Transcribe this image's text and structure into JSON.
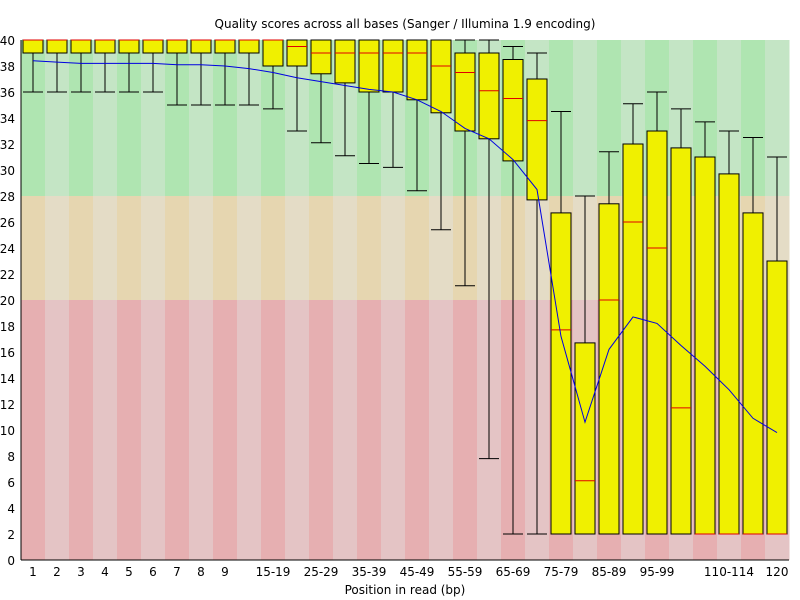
{
  "chart_data": {
    "type": "boxplot",
    "title": "Quality scores across all bases (Sanger / Illumina 1.9 encoding)",
    "xlabel": "Position in read (bp)",
    "ylabel": "",
    "ylim": [
      0,
      40
    ],
    "yticks": [
      0,
      2,
      4,
      6,
      8,
      10,
      12,
      14,
      16,
      18,
      20,
      22,
      24,
      26,
      28,
      30,
      32,
      34,
      36,
      38,
      40
    ],
    "categories": [
      "1",
      "2",
      "3",
      "4",
      "5",
      "6",
      "7",
      "8",
      "9",
      "",
      "15-19",
      "",
      "25-29",
      "",
      "35-39",
      "",
      "45-49",
      "",
      "55-59",
      "",
      "65-69",
      "",
      "75-79",
      "",
      "85-89",
      "",
      "95-99",
      "",
      "",
      "110-114",
      "",
      "120"
    ],
    "zones": [
      {
        "from": 28,
        "to": 40,
        "colors": [
          "#afe5b1",
          "#c4e5c5"
        ]
      },
      {
        "from": 20,
        "to": 28,
        "colors": [
          "#e6d6b0",
          "#e4dcc6"
        ]
      },
      {
        "from": 0,
        "to": 20,
        "colors": [
          "#e6afb1",
          "#e4c4c5"
        ]
      }
    ],
    "box_color": "#f0f000",
    "median_color": "#e00000",
    "mean_color": "#0000e0",
    "series": [
      {
        "stat": "whisker_high",
        "values": [
          40,
          40,
          40,
          40,
          40,
          40,
          40,
          40,
          40,
          40,
          40,
          40,
          40,
          40,
          40,
          40,
          40,
          40,
          40,
          40,
          39.5,
          39,
          34.5,
          28,
          31.4,
          35.1,
          36,
          34.7,
          33.7,
          33,
          32.5,
          31
        ]
      },
      {
        "stat": "q3",
        "values": [
          40,
          40,
          40,
          40,
          40,
          40,
          40,
          40,
          40,
          40,
          40,
          40,
          40,
          40,
          40,
          40,
          40,
          40,
          39,
          39,
          38.5,
          37,
          26.7,
          16.7,
          27.4,
          32,
          33,
          31.7,
          31,
          29.7,
          26.7,
          23
        ]
      },
      {
        "stat": "median",
        "values": [
          40,
          40,
          40,
          40,
          40,
          40,
          40,
          40,
          40,
          40,
          40,
          39.5,
          39,
          39,
          39,
          39,
          39,
          38,
          37.5,
          36.1,
          35.5,
          33.8,
          17.7,
          6.1,
          20,
          26,
          24,
          11.7,
          2,
          2,
          2,
          2
        ]
      },
      {
        "stat": "q1",
        "values": [
          39,
          39,
          39,
          39,
          39,
          39,
          39,
          39,
          39,
          39,
          38,
          38,
          37.4,
          36.7,
          36,
          36,
          35.4,
          34.4,
          33,
          32.4,
          30.7,
          27.7,
          2,
          2,
          2,
          2,
          2,
          2,
          2,
          2,
          2,
          2
        ]
      },
      {
        "stat": "whisker_low",
        "values": [
          36,
          36,
          36,
          36,
          36,
          36,
          35,
          35,
          35,
          35,
          34.7,
          33,
          32.1,
          31.1,
          30.5,
          30.2,
          28.4,
          25.4,
          21.1,
          7.8,
          2,
          2,
          2,
          2,
          2,
          2,
          2,
          2,
          2,
          2,
          2,
          2
        ]
      },
      {
        "stat": "mean",
        "values": [
          38.4,
          38.3,
          38.2,
          38.2,
          38.2,
          38.2,
          38.1,
          38.1,
          38.0,
          37.8,
          37.5,
          37.1,
          36.8,
          36.5,
          36.2,
          36.0,
          35.4,
          34.5,
          33.2,
          32.4,
          30.8,
          28.5,
          17.2,
          10.6,
          16.2,
          18.7,
          18.2,
          16.5,
          14.9,
          13.1,
          10.9,
          9.8
        ]
      }
    ],
    "grid": false,
    "legend": "none"
  }
}
